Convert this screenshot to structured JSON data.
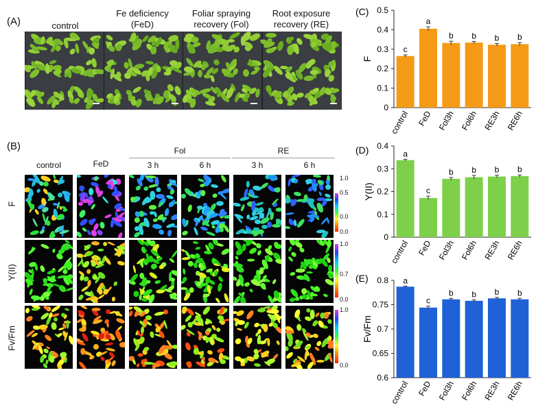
{
  "panel_a": {
    "letter": "(A)",
    "columns": [
      {
        "line1": "control",
        "line2": ""
      },
      {
        "line1": "Fe deficiency",
        "line2": "(FeD)"
      },
      {
        "line1": "Foliar spraying",
        "line2": "recovery (Fol)"
      },
      {
        "line1": "Root exposure",
        "line2": "recovery (RE)"
      }
    ]
  },
  "panel_b": {
    "letter": "(B)",
    "groups": {
      "fol": "Fol",
      "re": "RE"
    },
    "columns": [
      "control",
      "FeD",
      "3 h",
      "6 h",
      "3 h",
      "6 h"
    ],
    "rows": [
      "F",
      "Y(II)",
      "Fv/Fm"
    ],
    "colorbars": [
      {
        "ticks": [
          "1.0",
          "0.5",
          "0.0",
          "0.0"
        ],
        "colors": [
          "#e040e0",
          "#2040ff",
          "#00d0ff",
          "#30ff40",
          "#ffff20",
          "#ff8000",
          "#ff2000"
        ]
      },
      {
        "ticks": [
          "1.0",
          "0.7",
          "0.0"
        ],
        "colors": [
          "#e040e0",
          "#2040ff",
          "#00d0ff",
          "#30ff40",
          "#ffff20",
          "#ff8000",
          "#ff2000"
        ]
      },
      {
        "ticks": [
          "1.0",
          "0.0"
        ],
        "colors": [
          "#e040e0",
          "#2040ff",
          "#00d0ff",
          "#30ff40",
          "#ffff20",
          "#ff8000",
          "#ff2000"
        ]
      }
    ]
  },
  "colors": {
    "orange": "#f59a17",
    "green": "#7ed04a",
    "blue": "#1f62d8"
  },
  "chart_data": [
    {
      "panel": "(C)",
      "type": "bar",
      "ylabel": "F",
      "xlabel": "",
      "categories": [
        "control",
        "FeD",
        "Fol3h",
        "Fol6h",
        "RE3h",
        "RE6h"
      ],
      "values": [
        0.265,
        0.405,
        0.332,
        0.334,
        0.323,
        0.326
      ],
      "errors": [
        0.006,
        0.01,
        0.009,
        0.006,
        0.006,
        0.008
      ],
      "letters": [
        "c",
        "a",
        "b",
        "b",
        "b",
        "b"
      ],
      "ylim": [
        0,
        0.5
      ],
      "yticks": [
        "0",
        "0.1",
        "0.2",
        "0.3",
        "0.4",
        "0.5"
      ],
      "color": "#f59a17"
    },
    {
      "panel": "(D)",
      "type": "bar",
      "ylabel": "Y(II)",
      "xlabel": "",
      "categories": [
        "control",
        "FeD",
        "Fol3h",
        "Fol6h",
        "RE3h",
        "RE6h"
      ],
      "values": [
        0.338,
        0.172,
        0.256,
        0.263,
        0.266,
        0.268
      ],
      "errors": [
        0.004,
        0.008,
        0.006,
        0.008,
        0.006,
        0.005
      ],
      "letters": [
        "a",
        "c",
        "b",
        "b",
        "b",
        "b"
      ],
      "ylim": [
        0,
        0.4
      ],
      "yticks": [
        "0",
        "0.1",
        "0.2",
        "0.3",
        "0.4"
      ],
      "color": "#7ed04a"
    },
    {
      "panel": "(E)",
      "type": "bar",
      "ylabel": "Fv/Fm",
      "xlabel": "",
      "categories": [
        "control",
        "FeD",
        "Fol3h",
        "Fol6h",
        "RE3h",
        "RE6h"
      ],
      "values": [
        0.787,
        0.744,
        0.761,
        0.758,
        0.763,
        0.761
      ],
      "errors": [
        0.001,
        0.003,
        0.002,
        0.002,
        0.002,
        0.002
      ],
      "letters": [
        "a",
        "c",
        "b",
        "b",
        "b",
        "b"
      ],
      "ylim": [
        0.6,
        0.8
      ],
      "yticks": [
        "0.6",
        "0.65",
        "0.7",
        "0.75",
        "0.8"
      ],
      "color": "#1f62d8"
    }
  ]
}
